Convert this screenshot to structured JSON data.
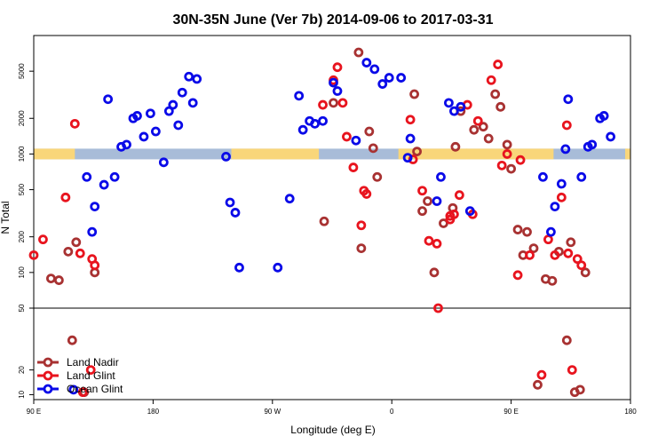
{
  "chart_data": {
    "type": "scatter",
    "title": "30N-35N June (Ver 7b)   2014-09-06 to 2017-03-31",
    "xlabel": "Longitude (deg E)",
    "ylabel": "N Total",
    "x_ticks": [
      {
        "value": -90,
        "label": "90 E"
      },
      {
        "value": 0,
        "label": "180"
      },
      {
        "value": 90,
        "label": "90 W"
      },
      {
        "value": 180,
        "label": "0"
      },
      {
        "value": 270,
        "label": "90 E"
      },
      {
        "value": 360,
        "label": "180"
      }
    ],
    "xlim": [
      -90,
      360
    ],
    "upper_panel": {
      "scale": "log",
      "ylim": [
        50,
        10000
      ],
      "ticks": [
        100,
        200,
        500,
        1000,
        2000,
        5000
      ]
    },
    "lower_panel": {
      "scale": "linear",
      "ylim": [
        8,
        45
      ],
      "ticks": [
        10,
        20,
        50
      ]
    },
    "landmask": {
      "y": 1000,
      "ocean_color": "#a8bcd8",
      "land_color": "#f9d67a",
      "land_ranges": [
        [
          -90,
          -59
        ],
        [
          59,
          125
        ],
        [
          185,
          237
        ],
        [
          236,
          302
        ],
        [
          356,
          360
        ]
      ]
    },
    "series": [
      {
        "name": "Land Nadir",
        "color": "#a83232",
        "points": [
          [
            -77,
            89
          ],
          [
            -71,
            86
          ],
          [
            -64,
            150
          ],
          [
            -61,
            32
          ],
          [
            -58,
            180
          ],
          [
            -52,
            11
          ],
          [
            -44,
            100
          ],
          [
            129,
            270
          ],
          [
            136,
            2700
          ],
          [
            155,
            7200
          ],
          [
            157,
            160
          ],
          [
            163,
            1550
          ],
          [
            166,
            1120
          ],
          [
            169,
            640
          ],
          [
            197,
            3200
          ],
          [
            199,
            1050
          ],
          [
            203,
            330
          ],
          [
            207,
            400
          ],
          [
            212,
            100
          ],
          [
            219,
            260
          ],
          [
            226,
            350
          ],
          [
            228,
            1150
          ],
          [
            232,
            2300
          ],
          [
            242,
            1600
          ],
          [
            249,
            1700
          ],
          [
            253,
            1350
          ],
          [
            258,
            3200
          ],
          [
            262,
            2500
          ],
          [
            267,
            1200
          ],
          [
            270,
            750
          ],
          [
            275,
            230
          ],
          [
            279,
            140
          ],
          [
            282,
            220
          ],
          [
            287,
            160
          ],
          [
            290,
            14
          ],
          [
            296,
            88
          ],
          [
            301,
            85
          ],
          [
            306,
            150
          ],
          [
            312,
            32
          ],
          [
            315,
            180
          ],
          [
            318,
            11
          ],
          [
            322,
            12
          ],
          [
            326,
            100
          ]
        ]
      },
      {
        "name": "Land Glint",
        "color": "#e8141e",
        "points": [
          [
            -90,
            140
          ],
          [
            -83,
            190
          ],
          [
            -66,
            430
          ],
          [
            -59,
            1800
          ],
          [
            -55,
            145
          ],
          [
            -53,
            11
          ],
          [
            -47,
            20
          ],
          [
            -46,
            130
          ],
          [
            -44,
            115
          ],
          [
            128,
            2600
          ],
          [
            136,
            4200
          ],
          [
            139,
            5400
          ],
          [
            143,
            2700
          ],
          [
            146,
            1400
          ],
          [
            151,
            770
          ],
          [
            157,
            250
          ],
          [
            159,
            490
          ],
          [
            161,
            460
          ],
          [
            194,
            1950
          ],
          [
            196,
            900
          ],
          [
            203,
            490
          ],
          [
            208,
            185
          ],
          [
            214,
            175
          ],
          [
            215,
            50
          ],
          [
            224,
            280
          ],
          [
            224,
            300
          ],
          [
            227,
            310
          ],
          [
            231,
            450
          ],
          [
            237,
            2600
          ],
          [
            241,
            310
          ],
          [
            245,
            1900
          ],
          [
            255,
            4200
          ],
          [
            260,
            5700
          ],
          [
            263,
            800
          ],
          [
            267,
            1000
          ],
          [
            275,
            95
          ],
          [
            277,
            890
          ],
          [
            284,
            140
          ],
          [
            293,
            18
          ],
          [
            298,
            190
          ],
          [
            303,
            140
          ],
          [
            308,
            430
          ],
          [
            312,
            1750
          ],
          [
            313,
            145
          ],
          [
            316,
            20
          ],
          [
            320,
            130
          ],
          [
            323,
            115
          ]
        ]
      },
      {
        "name": "Ocean Glint",
        "color": "#0a0ae8",
        "points": [
          [
            -60,
            12
          ],
          [
            -50,
            640
          ],
          [
            -46,
            220
          ],
          [
            -44,
            360
          ],
          [
            -37,
            550
          ],
          [
            -34,
            2900
          ],
          [
            -29,
            640
          ],
          [
            -24,
            1150
          ],
          [
            -20,
            1200
          ],
          [
            -15,
            2000
          ],
          [
            -12,
            2100
          ],
          [
            -7,
            1400
          ],
          [
            -2,
            2200
          ],
          [
            2,
            1550
          ],
          [
            8,
            850
          ],
          [
            12,
            2300
          ],
          [
            15,
            2600
          ],
          [
            19,
            1750
          ],
          [
            22,
            3300
          ],
          [
            27,
            4500
          ],
          [
            30,
            2700
          ],
          [
            33,
            4300
          ],
          [
            55,
            950
          ],
          [
            58,
            390
          ],
          [
            62,
            320
          ],
          [
            65,
            110
          ],
          [
            94,
            110
          ],
          [
            103,
            420
          ],
          [
            110,
            3100
          ],
          [
            113,
            1600
          ],
          [
            118,
            1900
          ],
          [
            122,
            1800
          ],
          [
            128,
            1900
          ],
          [
            136,
            4000
          ],
          [
            139,
            3400
          ],
          [
            153,
            1300
          ],
          [
            161,
            5900
          ],
          [
            167,
            5200
          ],
          [
            173,
            3900
          ],
          [
            178,
            4400
          ],
          [
            187,
            4400
          ],
          [
            194,
            1350
          ],
          [
            192,
            930
          ],
          [
            214,
            400
          ],
          [
            217,
            640
          ],
          [
            223,
            2700
          ],
          [
            227,
            2300
          ],
          [
            232,
            2500
          ],
          [
            239,
            330
          ],
          [
            294,
            640
          ],
          [
            300,
            220
          ],
          [
            303,
            360
          ],
          [
            308,
            560
          ],
          [
            311,
            1100
          ],
          [
            313,
            2900
          ],
          [
            323,
            640
          ],
          [
            328,
            1150
          ],
          [
            331,
            1200
          ],
          [
            337,
            2000
          ],
          [
            340,
            2100
          ],
          [
            345,
            1400
          ]
        ]
      }
    ],
    "legend": {
      "position": "bottom-left",
      "entries": [
        "Land Nadir",
        "Land Glint",
        "Ocean Glint"
      ]
    }
  }
}
